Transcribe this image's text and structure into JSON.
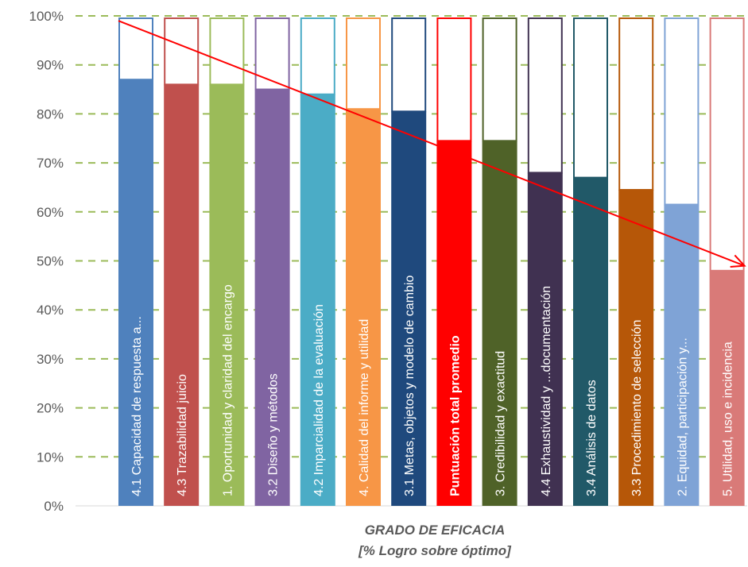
{
  "chart_data": {
    "type": "bar",
    "categories": [
      "4.1 Capacidad de respuesta a...",
      "4.3 Trazabilidad juicio",
      "1. Oportunidad y claridad del encargo",
      "3.2 Diseño y métodos",
      "4.2 Imparcialidad de la evaluación",
      "4. Calidad del informe y utilidad",
      "3.1 Metas, objetos y modelo de cambio",
      "Puntuación total promedio",
      "3. Credibilidad y exactitud",
      "4.4 Exhaustividad y ...documentación",
      "3.4 Análisis de datos",
      "3.3 Procedimiento de selección",
      "2. Equidad, participación y...",
      "5. Utilidad, uso e incidencia"
    ],
    "values": [
      87,
      86,
      86,
      85,
      84,
      81,
      80.5,
      74.5,
      74.5,
      68,
      67,
      64.5,
      61.5,
      48
    ],
    "optimum": 100,
    "colors": [
      "#4f81bd",
      "#c0504d",
      "#9bbb59",
      "#8064a2",
      "#4bacc6",
      "#f79646",
      "#1f497d",
      "#ff0000",
      "#4f6228",
      "#403151",
      "#215968",
      "#b65708",
      "#7fa3d6",
      "#d97a78"
    ],
    "bold_categories": [
      "Puntuación total promedio"
    ],
    "trend_arrow": {
      "from_value": 99,
      "to_value": 49,
      "color": "#ff0000"
    },
    "yticks": [
      "0%",
      "10%",
      "20%",
      "30%",
      "40%",
      "50%",
      "60%",
      "70%",
      "80%",
      "90%",
      "100%"
    ],
    "ylim": [
      0,
      100
    ],
    "grid": "dashed-horizontal",
    "gridcolor": "#9bbb59",
    "xlabel_line1": "GRADO DE EFICACIA",
    "xlabel_line2": "[% Logro sobre óptimo]"
  }
}
